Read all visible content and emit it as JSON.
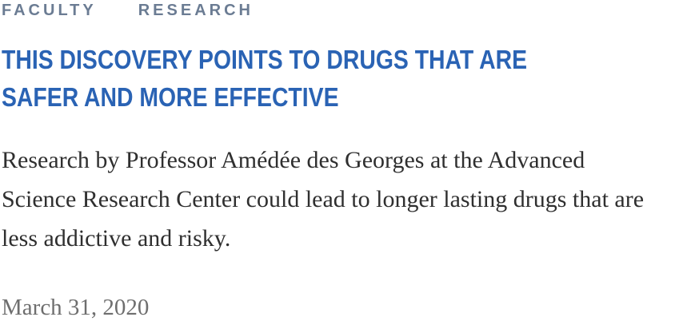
{
  "categories": [
    "FACULTY",
    "RESEARCH"
  ],
  "headline_lines": [
    "THIS DISCOVERY POINTS TO DRUGS THAT ARE",
    "SAFER AND MORE EFFECTIVE"
  ],
  "summary_lines": [
    "Research by Professor Amédée des Georges at the Advanced",
    "Science Research Center could lead to longer lasting drugs that are",
    "less addictive and risky."
  ],
  "date": "March 31, 2020",
  "colors": {
    "headline": "#2a63b4",
    "category": "#6b7c93",
    "body": "#2f2f2f",
    "date": "#6e6e6e"
  }
}
